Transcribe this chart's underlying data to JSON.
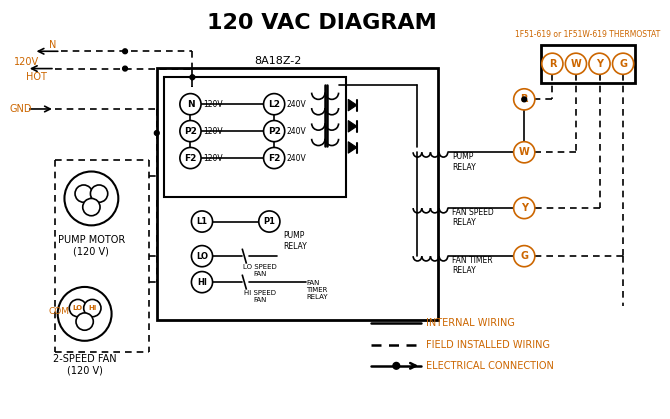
{
  "title": "120 VAC DIAGRAM",
  "title_fontsize": 16,
  "title_fontweight": "bold",
  "bg_color": "#ffffff",
  "line_color": "#000000",
  "orange_color": "#cc6600",
  "thermostat_label": "1F51-619 or 1F51W-619 THERMOSTAT",
  "controller_label": "8A18Z-2",
  "legend_items": [
    {
      "label": "INTERNAL WIRING",
      "style": "solid"
    },
    {
      "label": "FIELD INSTALLED WIRING",
      "style": "dashed"
    },
    {
      "label": "ELECTRICAL CONNECTION",
      "style": "dot_arrow"
    }
  ],
  "terminal_labels_left": [
    "N",
    "P2",
    "F2"
  ],
  "terminal_labels_right": [
    "L2",
    "P2",
    "F2"
  ],
  "terminal_voltages_left": [
    "120V",
    "120V",
    "120V"
  ],
  "terminal_voltages_right": [
    "240V",
    "240V",
    "240V"
  ],
  "thermostat_terminals": [
    "R",
    "W",
    "Y",
    "G"
  ],
  "pump_motor_label": "PUMP MOTOR\n(120 V)",
  "two_speed_fan_label": "2-SPEED FAN\n(120 V)",
  "lo_speed_label": "LO SPEED\nFAN",
  "hi_speed_label": "HI SPEED\nFAN",
  "fan_timer_relay2": "FAN\nTIMER\nRELAY",
  "p1_pump_relay": "PUMP\nRELAY"
}
